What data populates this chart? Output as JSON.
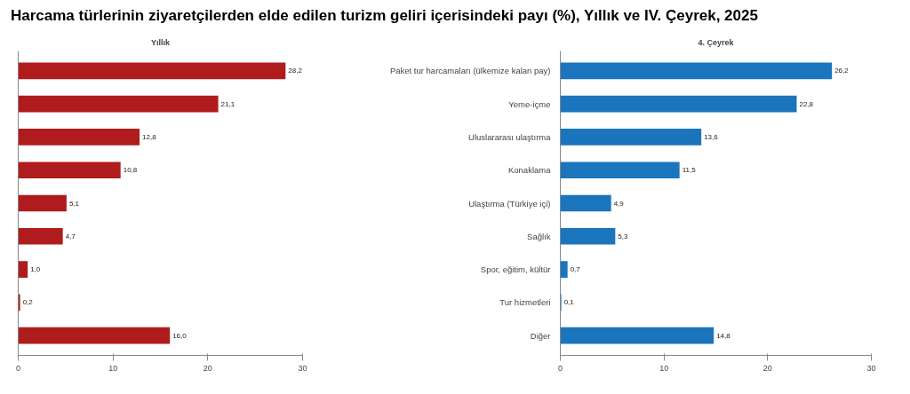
{
  "chart_data": [
    {
      "type": "bar",
      "orientation": "horizontal",
      "title": "Yıllık",
      "categories": [
        null,
        null,
        null,
        null,
        null,
        null,
        null,
        null,
        null
      ],
      "values": [
        28.2,
        21.1,
        12.8,
        10.8,
        5.1,
        4.7,
        1.0,
        0.2,
        16.0
      ],
      "value_labels": [
        "28,2",
        "21,1",
        "12,8",
        "10,8",
        "5,1",
        "4,7",
        "1,0",
        "0,2",
        "16,0"
      ],
      "color": "#b01c1e",
      "xlim": [
        0,
        30
      ],
      "xticks": [
        0,
        10,
        20,
        30
      ],
      "grid": false,
      "annotations": [
        "Harcama türlerinin ziyaretçilerden elde edilen turizm geliri içerisindeki payı (%), Yıllık ve IV. Çeyrek, 2025"
      ]
    },
    {
      "type": "bar",
      "orientation": "horizontal",
      "title": "4. Çeyrek",
      "categories": [
        "Paket tur harcamaları (ülkemize kalan pay)",
        "Yeme-içme",
        "Uluslararası ulaştırma",
        "Konaklama",
        "Ulaştırma (Türkiye içi)",
        "Sağlık",
        "Spor, eğitim, kültür",
        "Tur hizmetleri",
        "Diğer"
      ],
      "values": [
        26.2,
        22.8,
        13.6,
        11.5,
        4.9,
        5.3,
        0.7,
        0.1,
        14.8
      ],
      "value_labels": [
        "26,2",
        "22,8",
        "13,6",
        "11,5",
        "4,9",
        "5,3",
        "0,7",
        "0,1",
        "14,8"
      ],
      "color": "#1a75bc",
      "xlim": [
        0,
        30
      ],
      "xticks": [
        0,
        10,
        20,
        30
      ],
      "grid": false
    }
  ]
}
